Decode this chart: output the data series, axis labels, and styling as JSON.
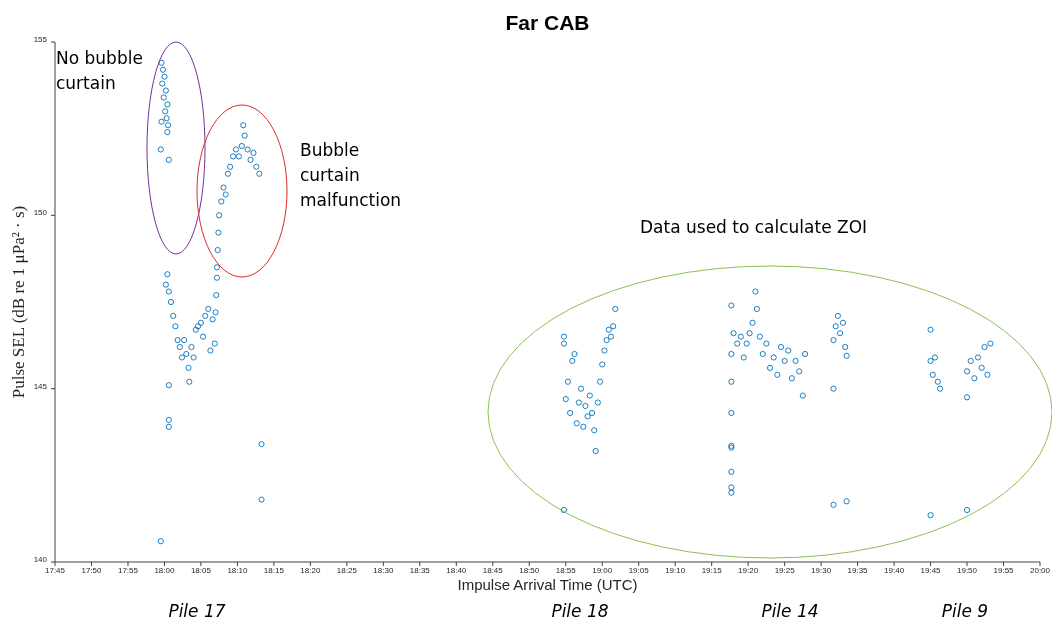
{
  "chart_data": {
    "type": "scatter",
    "title": "Far CAB",
    "xlabel": "Impulse Arrival Time (UTC)",
    "ylabel": "Pulse SEL (dB re 1 μPa² · s)",
    "annotations": [
      "No bubble curtain",
      "Bubble curtain malfunction",
      "Data used to calculate ZOI",
      "Pile 17",
      "Pile 18",
      "Pile 14",
      "Pile 9"
    ],
    "marker": "circle",
    "xlim": [
      17.75,
      20.0
    ],
    "xticks": [
      {
        "value": 17.75,
        "label": "17:45"
      },
      {
        "value": 17.8333,
        "label": "17:50"
      },
      {
        "value": 17.9167,
        "label": "17:55"
      },
      {
        "value": 18.0,
        "label": "18:00"
      },
      {
        "value": 18.0833,
        "label": "18:05"
      },
      {
        "value": 18.1667,
        "label": "18:10"
      },
      {
        "value": 18.25,
        "label": "18:15"
      },
      {
        "value": 18.3333,
        "label": "18:20"
      },
      {
        "value": 18.4167,
        "label": "18:25"
      },
      {
        "value": 18.5,
        "label": "18:30"
      },
      {
        "value": 18.5833,
        "label": "18:35"
      },
      {
        "value": 18.6667,
        "label": "18:40"
      },
      {
        "value": 18.75,
        "label": "18:45"
      },
      {
        "value": 18.8333,
        "label": "18:50"
      },
      {
        "value": 18.9167,
        "label": "18:55"
      },
      {
        "value": 19.0,
        "label": "19:00"
      },
      {
        "value": 19.0833,
        "label": "19:05"
      },
      {
        "value": 19.1667,
        "label": "19:10"
      },
      {
        "value": 19.25,
        "label": "19:15"
      },
      {
        "value": 19.3333,
        "label": "19:20"
      },
      {
        "value": 19.4167,
        "label": "19:25"
      },
      {
        "value": 19.5,
        "label": "19:30"
      },
      {
        "value": 19.5833,
        "label": "19:35"
      },
      {
        "value": 19.6667,
        "label": "19:40"
      },
      {
        "value": 19.75,
        "label": "19:45"
      },
      {
        "value": 19.8333,
        "label": "19:50"
      },
      {
        "value": 19.9167,
        "label": "19:55"
      },
      {
        "value": 20.0,
        "label": "20:00"
      }
    ],
    "ylim": [
      140,
      155
    ],
    "yticks": [
      140,
      145,
      150,
      155
    ],
    "series": [
      {
        "color": "#0072bd",
        "x": [
          17.9933,
          17.9967,
          18.0,
          17.995,
          18.0033,
          17.9983,
          18.0067,
          18.0017,
          18.005,
          17.9933,
          18.0067,
          17.9917,
          18.01,
          18.0083,
          17.9917,
          18.01,
          18.01,
          18.01,
          18.0033,
          18.0067,
          18.01,
          18.015,
          18.02,
          18.025,
          18.03,
          18.035,
          18.04,
          18.045,
          18.05,
          18.055,
          18.0567,
          18.0617,
          18.0667,
          18.0717,
          18.0767,
          18.0833,
          18.0883,
          18.0933,
          18.1,
          18.105,
          18.11,
          18.115,
          18.1167,
          18.1183,
          18.12,
          18.12,
          18.1217,
          18.1233,
          18.125,
          18.13,
          18.135,
          18.14,
          18.145,
          18.15,
          18.1567,
          18.1633,
          18.17,
          18.1767,
          18.18,
          18.1833,
          18.19,
          18.1967,
          18.2033,
          18.21,
          18.2167,
          18.2217,
          18.2217,
          18.9125,
          18.9125,
          18.9125,
          18.9167,
          18.9217,
          18.9267,
          18.9317,
          18.9367,
          18.9417,
          18.9467,
          18.9517,
          18.9567,
          18.9617,
          18.9667,
          18.9717,
          18.9767,
          18.9817,
          18.985,
          18.99,
          18.995,
          19.0,
          19.005,
          19.01,
          19.015,
          19.02,
          19.025,
          19.03,
          19.295,
          19.295,
          19.295,
          19.295,
          19.295,
          19.295,
          19.295,
          19.295,
          19.295,
          19.3,
          19.3083,
          19.3167,
          19.3233,
          19.33,
          19.3367,
          19.3433,
          19.35,
          19.3533,
          19.36,
          19.3667,
          19.375,
          19.3833,
          19.3917,
          19.4,
          19.4083,
          19.4167,
          19.425,
          19.4333,
          19.4417,
          19.45,
          19.4583,
          19.4633,
          19.5283,
          19.5283,
          19.5283,
          19.5333,
          19.5383,
          19.5433,
          19.55,
          19.555,
          19.5583,
          19.5583,
          19.75,
          19.75,
          19.75,
          19.755,
          19.76,
          19.7667,
          19.7717,
          19.8333,
          19.8333,
          19.8333,
          19.8417,
          19.85,
          19.8583,
          19.8667,
          19.8733,
          19.88,
          19.8867
        ],
        "values": [
          154.4,
          154.2,
          154.0,
          153.8,
          153.6,
          153.4,
          153.2,
          153.0,
          152.8,
          152.7,
          152.4,
          151.9,
          151.6,
          152.6,
          140.6,
          145.1,
          144.1,
          143.9,
          148.0,
          148.3,
          147.8,
          147.5,
          147.1,
          146.8,
          146.4,
          146.2,
          145.9,
          146.4,
          146.0,
          145.6,
          145.2,
          146.2,
          145.9,
          146.7,
          146.8,
          146.9,
          146.5,
          147.1,
          147.3,
          146.1,
          147.0,
          146.3,
          147.2,
          147.7,
          148.2,
          148.5,
          149.0,
          149.5,
          150.0,
          150.4,
          150.8,
          150.6,
          151.2,
          151.4,
          151.7,
          151.9,
          151.7,
          152.0,
          152.6,
          152.3,
          151.9,
          151.6,
          151.8,
          151.4,
          151.2,
          143.4,
          141.8,
          146.5,
          146.3,
          141.5,
          144.7,
          145.2,
          144.3,
          145.8,
          146.0,
          144.0,
          144.6,
          145.0,
          143.9,
          144.5,
          144.2,
          144.8,
          144.3,
          143.8,
          143.2,
          144.6,
          145.2,
          145.7,
          146.1,
          146.4,
          146.7,
          146.5,
          146.8,
          147.3,
          147.4,
          146.0,
          145.2,
          144.3,
          143.35,
          143.3,
          142.6,
          142.15,
          142.0,
          146.6,
          146.3,
          146.5,
          145.9,
          146.3,
          146.6,
          146.9,
          147.8,
          147.3,
          146.5,
          146.0,
          146.3,
          145.6,
          145.9,
          145.4,
          146.2,
          145.8,
          146.1,
          145.3,
          145.8,
          145.5,
          144.8,
          146.0,
          146.4,
          145.0,
          141.65,
          146.8,
          147.1,
          146.6,
          146.9,
          146.2,
          145.95,
          141.75,
          146.7,
          145.8,
          141.35,
          145.4,
          145.9,
          145.2,
          145.0,
          145.5,
          144.75,
          141.5,
          145.8,
          145.3,
          145.9,
          145.6,
          146.2,
          145.4,
          146.3
        ]
      }
    ]
  }
}
